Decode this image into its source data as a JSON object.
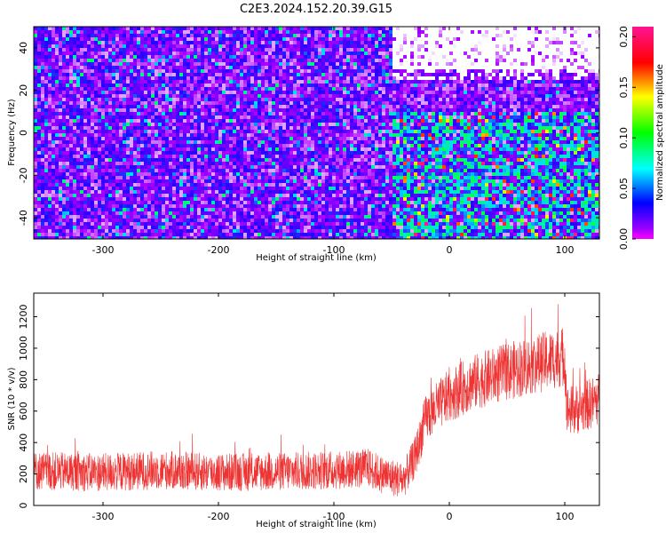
{
  "title": "C2E3.2024.152.20.39.G15",
  "chart_data": [
    {
      "type": "heatmap",
      "xlabel": "Height of straight line (km)",
      "ylabel": "Frequency (Hz)",
      "xlim": [
        -360,
        130
      ],
      "ylim": [
        -50,
        50
      ],
      "x_ticks": [
        -300,
        -200,
        -100,
        0,
        100
      ],
      "y_ticks": [
        -40,
        -20,
        0,
        20,
        40
      ],
      "colorbar": {
        "label": "Normalized spectral amplitude",
        "range": [
          0,
          0.21
        ],
        "ticks": [
          "0.00",
          "0.05",
          "0.10",
          "0.15",
          "0.20"
        ],
        "colormap": "hsv"
      },
      "grid": false,
      "description_regions": [
        {
          "x": [
            -360,
            -50
          ],
          "y": [
            -50,
            50
          ],
          "level": 0.04
        },
        {
          "x": [
            -50,
            130
          ],
          "y": [
            -50,
            10
          ],
          "level": 0.08
        },
        {
          "x": [
            -50,
            130
          ],
          "y": [
            25,
            50
          ],
          "level": 0.0
        }
      ]
    },
    {
      "type": "line",
      "xlabel": "Height of straight line (km)",
      "ylabel": "SNR (10 * v/v)",
      "xlim": [
        -360,
        130
      ],
      "ylim": [
        0,
        1350
      ],
      "x_ticks": [
        -300,
        -200,
        -100,
        0,
        100
      ],
      "y_ticks": [
        0,
        200,
        400,
        600,
        800,
        1000,
        1200
      ],
      "series_color": "#ee3333",
      "grid": false,
      "trend": [
        {
          "x": -360,
          "y": 220
        },
        {
          "x": -300,
          "y": 210
        },
        {
          "x": -250,
          "y": 225
        },
        {
          "x": -200,
          "y": 210
        },
        {
          "x": -150,
          "y": 215
        },
        {
          "x": -100,
          "y": 225
        },
        {
          "x": -75,
          "y": 235
        },
        {
          "x": -70,
          "y": 240
        },
        {
          "x": -60,
          "y": 200
        },
        {
          "x": -40,
          "y": 160
        },
        {
          "x": -30,
          "y": 300
        },
        {
          "x": -20,
          "y": 560
        },
        {
          "x": 0,
          "y": 700
        },
        {
          "x": 20,
          "y": 780
        },
        {
          "x": 50,
          "y": 850
        },
        {
          "x": 80,
          "y": 910
        },
        {
          "x": 100,
          "y": 950
        },
        {
          "x": 102,
          "y": 600
        },
        {
          "x": 115,
          "y": 620
        },
        {
          "x": 130,
          "y": 680
        }
      ],
      "noise_amplitude": 170,
      "max_value": 1340
    }
  ]
}
